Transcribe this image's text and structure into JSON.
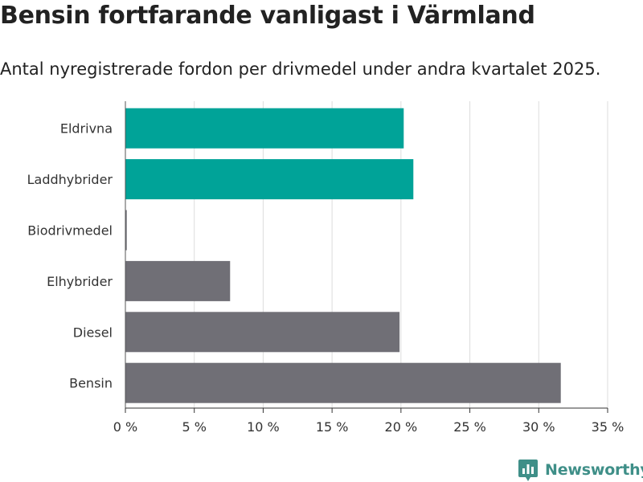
{
  "chart_data": {
    "type": "bar",
    "orientation": "horizontal",
    "title": "Bensin fortfarande vanligast i Värmland",
    "subtitle": "Antal nyregistrerade fordon per drivmedel under andra kvartalet 2025.",
    "categories": [
      "Eldrivna",
      "Laddhybrider",
      "Biodrivmedel",
      "Elhybrider",
      "Diesel",
      "Bensin"
    ],
    "values": [
      20.2,
      20.9,
      0.1,
      7.6,
      19.9,
      31.6
    ],
    "bar_colors": [
      "#00a398",
      "#00a398",
      "#706f76",
      "#706f76",
      "#706f76",
      "#706f76"
    ],
    "xlim": [
      0,
      35
    ],
    "xticks": [
      0,
      5,
      10,
      15,
      20,
      25,
      30,
      35
    ],
    "xtick_labels": [
      "0 %",
      "5 %",
      "10 %",
      "15 %",
      "20 %",
      "25 %",
      "30 %",
      "35 %"
    ],
    "grid": true,
    "gridline_color": "#dddddd"
  },
  "brand": {
    "name": "Newsworthy",
    "color": "#3f8f88",
    "icon": "newsworthy-logo-icon"
  }
}
